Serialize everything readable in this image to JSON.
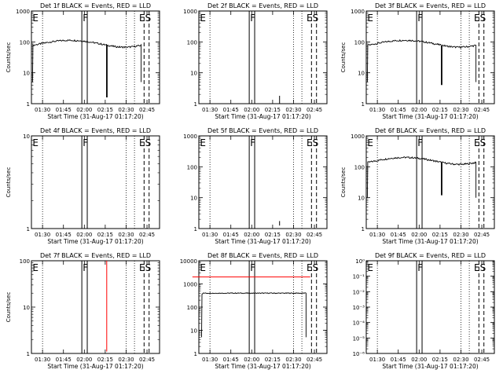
{
  "chart_data": [
    {
      "type": "line",
      "title": "Det 1f BLACK = Events, RED = LLD",
      "ylabel": "Counts/sec",
      "xlabel": "Start Time (31-Aug-17 01:17:20)",
      "yscale": "log",
      "ylim": [
        1,
        1000
      ],
      "yticks": [
        {
          "v": 1,
          "label": "1"
        },
        {
          "v": 10,
          "label": "10"
        },
        {
          "v": 100,
          "label": "100"
        },
        {
          "v": 1000,
          "label": "1000"
        }
      ],
      "xticks": [
        "01:30",
        "01:45",
        "02:00",
        "02:15",
        "02:30",
        "02:45"
      ],
      "markers": {
        "E": true,
        "F": true,
        "ES": true
      },
      "series": [
        {
          "color": "#000000",
          "kind": "profile",
          "start": 1.38,
          "end": 2.68,
          "base": 90,
          "dip1": 5,
          "dip2": 1.6
        }
      ]
    },
    {
      "type": "line",
      "title": "Det 2f BLACK = Events, RED = LLD",
      "ylabel": "",
      "xlabel": "Start Time (31-Aug-17 01:17:20)",
      "yscale": "log",
      "ylim": [
        1,
        1000
      ],
      "yticks": [
        {
          "v": 1,
          "label": "1"
        },
        {
          "v": 10,
          "label": "10"
        },
        {
          "v": 100,
          "label": "100"
        },
        {
          "v": 1000,
          "label": "1000"
        }
      ],
      "xticks": [
        "01:30",
        "01:45",
        "02:00",
        "02:15",
        "02:30",
        "02:45"
      ],
      "markers": {
        "E": true,
        "F": true,
        "ES": true
      },
      "series": [
        {
          "color": "#000000",
          "kind": "spike",
          "t": 2.333,
          "y0": 1,
          "y1": 1.8
        }
      ]
    },
    {
      "type": "line",
      "title": "Det 3f BLACK = Events, RED = LLD",
      "ylabel": "Counts/sec",
      "xlabel": "Start Time (31-Aug-17 01:17:20)",
      "yscale": "log",
      "ylim": [
        1,
        1000
      ],
      "yticks": [
        {
          "v": 1,
          "label": "1"
        },
        {
          "v": 10,
          "label": "10"
        },
        {
          "v": 100,
          "label": "100"
        },
        {
          "v": 1000,
          "label": "1000"
        }
      ],
      "xticks": [
        "01:30",
        "01:45",
        "02:00",
        "02:15",
        "02:30",
        "02:45"
      ],
      "markers": {
        "E": true,
        "F": true,
        "ES": true
      },
      "series": [
        {
          "color": "#000000",
          "kind": "profile",
          "start": 1.38,
          "end": 2.68,
          "base": 90,
          "dip1": 5,
          "dip2": 4
        }
      ]
    },
    {
      "type": "line",
      "title": "Det 4f BLACK = Events, RED = LLD",
      "ylabel": "Counts/sec",
      "xlabel": "Start Time (31-Aug-17 01:17:20)",
      "yscale": "log",
      "ylim": [
        1,
        10
      ],
      "yticks": [
        {
          "v": 1,
          "label": "1"
        },
        {
          "v": 10,
          "label": "10"
        }
      ],
      "xticks": [
        "01:30",
        "01:45",
        "02:00",
        "02:15",
        "02:30",
        "02:45"
      ],
      "markers": {
        "E": true,
        "F": true,
        "ES": true
      },
      "series": []
    },
    {
      "type": "line",
      "title": "Det 5f BLACK = Events, RED = LLD",
      "ylabel": "",
      "xlabel": "Start Time (31-Aug-17 01:17:20)",
      "yscale": "log",
      "ylim": [
        1,
        1000
      ],
      "yticks": [
        {
          "v": 1,
          "label": "1"
        },
        {
          "v": 10,
          "label": "10"
        },
        {
          "v": 100,
          "label": "100"
        },
        {
          "v": 1000,
          "label": "1000"
        }
      ],
      "xticks": [
        "01:30",
        "01:45",
        "02:00",
        "02:15",
        "02:30",
        "02:45"
      ],
      "markers": {
        "E": true,
        "F": true,
        "ES": true
      },
      "series": [
        {
          "color": "#000000",
          "kind": "spike",
          "t": 2.333,
          "y0": 1.25,
          "y1": 1.75
        }
      ]
    },
    {
      "type": "line",
      "title": "Det 6f BLACK = Events, RED = LLD",
      "ylabel": "Counts/sec",
      "xlabel": "Start Time (31-Aug-17 01:17:20)",
      "yscale": "log",
      "ylim": [
        1,
        1000
      ],
      "yticks": [
        {
          "v": 1,
          "label": "1"
        },
        {
          "v": 10,
          "label": "10"
        },
        {
          "v": 100,
          "label": "100"
        },
        {
          "v": 1000,
          "label": "1000"
        }
      ],
      "xticks": [
        "01:30",
        "01:45",
        "02:00",
        "02:15",
        "02:30",
        "02:45"
      ],
      "markers": {
        "E": true,
        "F": true,
        "ES": true
      },
      "series": [
        {
          "color": "#000000",
          "kind": "profile",
          "start": 1.38,
          "end": 2.68,
          "base": 160,
          "dip1": 10,
          "dip2": 12
        }
      ]
    },
    {
      "type": "line",
      "title": "Det 7f BLACK = Events, RED = LLD",
      "ylabel": "Counts/sec",
      "xlabel": "Start Time (31-Aug-17 01:17:20)",
      "yscale": "log",
      "ylim": [
        1,
        100
      ],
      "yticks": [
        {
          "v": 1,
          "label": "1"
        },
        {
          "v": 10,
          "label": "10"
        },
        {
          "v": 100,
          "label": "100"
        }
      ],
      "xticks": [
        "01:30",
        "01:45",
        "02:00",
        "02:15",
        "02:30",
        "02:45"
      ],
      "markers": {
        "E": true,
        "F": true,
        "ES": true
      },
      "series": [
        {
          "color": "#ff0000",
          "kind": "spike",
          "t": 2.268,
          "y0": 1.1,
          "y1": 100
        }
      ]
    },
    {
      "type": "line",
      "title": "Det 8f BLACK = Events, RED = LLD",
      "ylabel": "",
      "xlabel": "Start Time (31-Aug-17 01:17:20)",
      "yscale": "log",
      "ylim": [
        1,
        10000
      ],
      "yticks": [
        {
          "v": 1,
          "label": "1"
        },
        {
          "v": 10,
          "label": "10"
        },
        {
          "v": 100,
          "label": "100"
        },
        {
          "v": 1000,
          "label": "1000"
        },
        {
          "v": 10000,
          "label": "10000"
        }
      ],
      "xticks": [
        "01:30",
        "01:45",
        "02:00",
        "02:15",
        "02:30",
        "02:45"
      ],
      "markers": {
        "E": true,
        "F": true,
        "ES": true
      },
      "series": [
        {
          "color": "#ff0000",
          "kind": "flat",
          "start": 1.29,
          "end": 2.7,
          "value": 2000
        },
        {
          "color": "#000000",
          "kind": "profile8",
          "start": 1.4,
          "end": 2.65,
          "base": 400,
          "dip1": 5
        }
      ]
    },
    {
      "type": "line",
      "title": "Det 9f BLACK = Events, RED = LLD",
      "ylabel": "",
      "xlabel": "Start Time (31-Aug-17 01:17:20)",
      "yscale": "log",
      "ylim": [
        1e-06,
        1
      ],
      "yticks": [
        {
          "v": 1,
          "label": "10⁰"
        },
        {
          "v": 0.1,
          "label": "10⁻¹"
        },
        {
          "v": 0.01,
          "label": "10⁻²"
        },
        {
          "v": 0.001,
          "label": "10⁻³"
        },
        {
          "v": 0.0001,
          "label": "10⁻⁴"
        },
        {
          "v": 1e-05,
          "label": "10⁻⁵"
        },
        {
          "v": 1e-06,
          "label": "10⁻⁶"
        }
      ],
      "xticks": [
        "01:30",
        "01:45",
        "02:00",
        "02:15",
        "02:30",
        "02:45"
      ],
      "markers": {
        "E": true,
        "F": true,
        "ES": true
      },
      "series": []
    }
  ],
  "marker_labels": {
    "e": "E",
    "f": "F",
    "es": "ES"
  }
}
